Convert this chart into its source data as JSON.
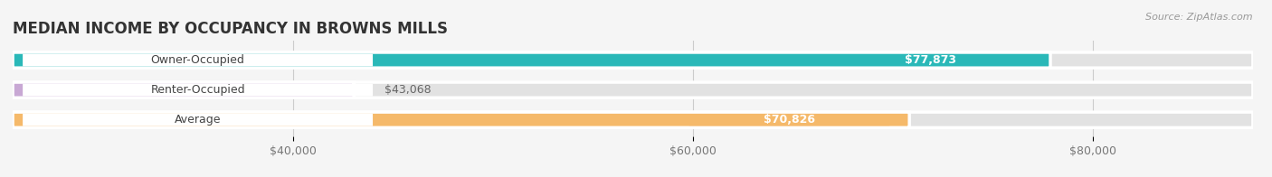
{
  "title": "MEDIAN INCOME BY OCCUPANCY IN BROWNS MILLS",
  "source": "Source: ZipAtlas.com",
  "categories": [
    "Owner-Occupied",
    "Renter-Occupied",
    "Average"
  ],
  "values": [
    77873,
    43068,
    70826
  ],
  "bar_colors": [
    "#2ab8b8",
    "#c8a8d4",
    "#f5b96a"
  ],
  "value_labels": [
    "$77,873",
    "$43,068",
    "$70,826"
  ],
  "x_ticks": [
    40000,
    60000,
    80000
  ],
  "x_tick_labels": [
    "$40,000",
    "$60,000",
    "$80,000"
  ],
  "x_min": 26000,
  "x_max": 88000,
  "title_fontsize": 12,
  "label_fontsize": 9,
  "tick_fontsize": 9,
  "source_fontsize": 8,
  "background_color": "#f5f5f5",
  "bar_background_color": "#e2e2e2",
  "label_bg_color": "#ffffff",
  "bar_edge_color": "#ffffff",
  "value_label_color_inside": "#ffffff",
  "value_label_color_outside": "#666666"
}
